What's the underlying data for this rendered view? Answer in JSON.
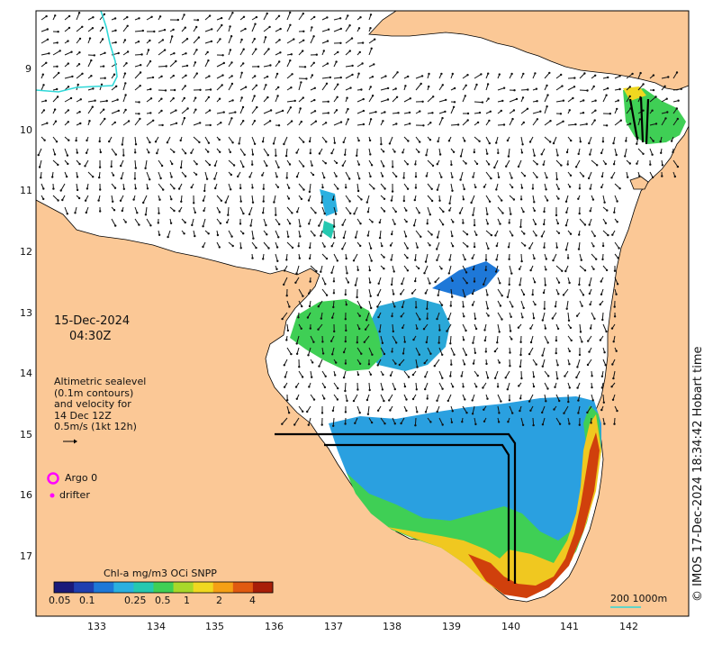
{
  "title": {
    "date": "15-Dec-2024",
    "time": "04:30Z"
  },
  "velocity_legend": {
    "line1": "Altimetric sealevel",
    "line2": "(0.1m contours)",
    "line3": "and velocity for",
    "line4": "14 Dec 12Z",
    "line5": "0.5m/s (1kt 12h)"
  },
  "symbols": {
    "argo_label": "Argo 0",
    "drifter_label": "drifter",
    "argo_color": "#ff00ff",
    "drifter_color": "#ff00ff"
  },
  "colorbar": {
    "title": "Chl-a mg/m3 OCi SNPP",
    "ticks": [
      "0.05",
      "0.1",
      "0.25",
      "0.5",
      "1",
      "2",
      "4"
    ],
    "colors": [
      "#1a1a7a",
      "#1f3fb0",
      "#1e78d8",
      "#2ab0e0",
      "#25c8b0",
      "#3fcf55",
      "#a8d82a",
      "#f0d820",
      "#f5a015",
      "#e05a10",
      "#a81e08"
    ]
  },
  "axes": {
    "x_ticks": [
      "133",
      "134",
      "135",
      "136",
      "137",
      "138",
      "139",
      "140",
      "141",
      "142"
    ],
    "y_ticks": [
      "9",
      "10",
      "11",
      "12",
      "13",
      "14",
      "15",
      "16",
      "17"
    ]
  },
  "scale_bar": {
    "label": "200  1000m"
  },
  "credit": "© IMOS 17-Dec-2024 18:34:42 Hobart time",
  "colors": {
    "land": "#fbc896",
    "ocean": "#ffffff",
    "contour": "#30d8d8",
    "arrows": "#111111"
  }
}
